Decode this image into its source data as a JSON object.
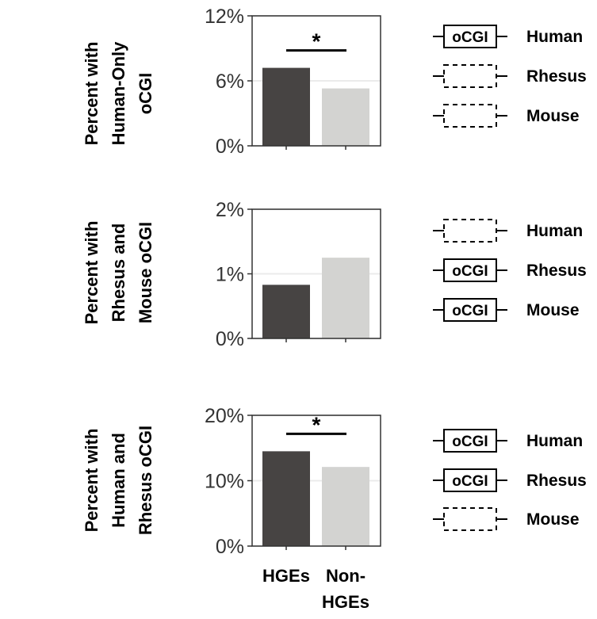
{
  "chart_data": [
    {
      "type": "bar",
      "ylabel_lines": [
        "Percent with",
        "Human-Only",
        "oCGI"
      ],
      "categories": [
        "HGEs",
        "Non-HGEs"
      ],
      "values": [
        7.2,
        5.3
      ],
      "ylim": [
        0,
        12
      ],
      "yticks": [
        "0%",
        "6%",
        "12%"
      ],
      "ytick_values": [
        0,
        6,
        12
      ],
      "significance": "*",
      "grid": true,
      "legend": [
        {
          "species": "Human",
          "box_label": "oCGI",
          "present": true
        },
        {
          "species": "Rhesus",
          "box_label": "",
          "present": false
        },
        {
          "species": "Mouse",
          "box_label": "",
          "present": false
        }
      ]
    },
    {
      "type": "bar",
      "ylabel_lines": [
        "Percent with",
        "Rhesus and",
        "Mouse oCGI"
      ],
      "categories": [
        "HGEs",
        "Non-HGEs"
      ],
      "values": [
        0.83,
        1.25
      ],
      "ylim": [
        0,
        2
      ],
      "yticks": [
        "0%",
        "1%",
        "2%"
      ],
      "ytick_values": [
        0,
        1,
        2
      ],
      "significance": "",
      "grid": true,
      "legend": [
        {
          "species": "Human",
          "box_label": "",
          "present": false
        },
        {
          "species": "Rhesus",
          "box_label": "oCGI",
          "present": true
        },
        {
          "species": "Mouse",
          "box_label": "oCGI",
          "present": true
        }
      ]
    },
    {
      "type": "bar",
      "ylabel_lines": [
        "Percent with",
        "Human and",
        "Rhesus oCGI"
      ],
      "categories": [
        "HGEs",
        "Non-HGEs"
      ],
      "values": [
        14.5,
        12.1
      ],
      "ylim": [
        0,
        20
      ],
      "yticks": [
        "0%",
        "10%",
        "20%"
      ],
      "ytick_values": [
        0,
        10,
        20
      ],
      "significance": "*",
      "grid": true,
      "legend": [
        {
          "species": "Human",
          "box_label": "oCGI",
          "present": true
        },
        {
          "species": "Rhesus",
          "box_label": "oCGI",
          "present": true
        },
        {
          "species": "Mouse",
          "box_label": "",
          "present": false
        }
      ]
    }
  ],
  "x_tick_lines": [
    [
      "HGEs"
    ],
    [
      "Non-",
      "HGEs"
    ]
  ],
  "colors": {
    "hges_bar": "#474443",
    "non_hges_bar": "#d3d3d1",
    "grid": "#ebebeb",
    "axis": "#333333"
  }
}
